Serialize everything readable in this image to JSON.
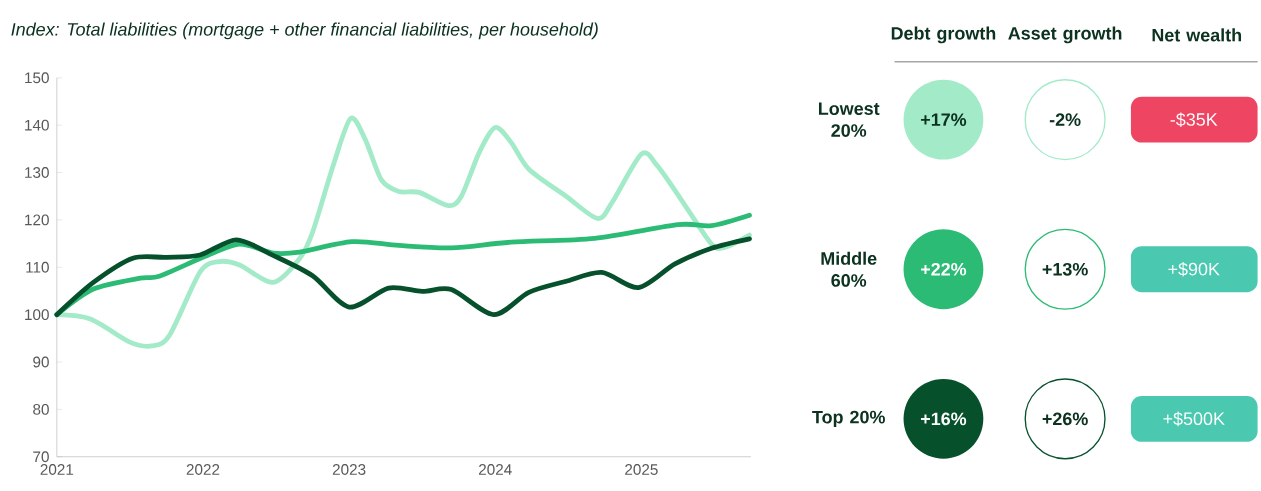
{
  "chart_data": [
    {
      "type": "line",
      "title": "Index: Total liabilities (mortgage + other financial liabilities, per household)",
      "xlim": [
        2021,
        2025.75
      ],
      "ylim": [
        70,
        150
      ],
      "xticks": [
        2021,
        2022,
        2023,
        2024,
        2025
      ],
      "yticks": [
        70,
        80,
        90,
        100,
        110,
        120,
        130,
        140,
        150
      ],
      "grid": false,
      "series": [
        {
          "color": "#a3ebc8",
          "x": [
            2021.0,
            2021.23,
            2021.5,
            2021.65,
            2021.77,
            2021.98,
            2022.11,
            2022.25,
            2022.48,
            2022.66,
            2022.75,
            2022.89,
            2023.01,
            2023.11,
            2023.22,
            2023.34,
            2023.48,
            2023.68,
            2023.77,
            2023.89,
            2024.0,
            2024.11,
            2024.23,
            2024.48,
            2024.7,
            2024.8,
            2025.0,
            2025.11,
            2025.27,
            2025.48,
            2025.57,
            2025.74
          ],
          "values": [
            100,
            99.1,
            94.2,
            93.4,
            95.6,
            109,
            111.2,
            110.5,
            106.8,
            111.8,
            117.4,
            131.4,
            141.4,
            137,
            128.5,
            126,
            125.8,
            123,
            125.1,
            134.2,
            139.5,
            136.3,
            130.7,
            125.1,
            120.3,
            123.7,
            133.9,
            131.4,
            124.4,
            114.9,
            114.2,
            116.8
          ]
        },
        {
          "color": "#2bbb75",
          "x": [
            2021.0,
            2021.25,
            2021.57,
            2021.7,
            2022.0,
            2022.25,
            2022.48,
            2022.66,
            2023.02,
            2023.34,
            2023.7,
            2024.11,
            2024.68,
            2025.25,
            2025.48,
            2025.74
          ],
          "values": [
            100,
            105.4,
            107.7,
            108.1,
            112.1,
            114.9,
            113,
            113.2,
            115.4,
            114.6,
            114.1,
            115.3,
            116.1,
            119,
            118.8,
            121
          ]
        },
        {
          "color": "#06512c",
          "x": [
            2021.0,
            2021.25,
            2021.52,
            2021.75,
            2021.98,
            2022.23,
            2022.48,
            2022.75,
            2023.0,
            2023.27,
            2023.5,
            2023.7,
            2023.99,
            2024.23,
            2024.48,
            2024.73,
            2024.98,
            2025.23,
            2025.48,
            2025.74
          ],
          "values": [
            100,
            106.8,
            111.9,
            112.1,
            112.6,
            115.8,
            112.5,
            108.2,
            101.6,
            105.6,
            104.9,
            105.3,
            100,
            104.7,
            107,
            108.9,
            105.7,
            110.7,
            114,
            116
          ]
        }
      ]
    },
    {
      "type": "other",
      "categories": [
        "Debt growth",
        "Asset growth",
        "Net wealth"
      ],
      "y_categories": [
        "Lowest 20%",
        "Middle 60%",
        "Top 20%"
      ],
      "cell_labels": [
        [
          "+17%",
          "-2%",
          "-$35K"
        ],
        [
          "+22%",
          "+13%",
          "+$90K"
        ],
        [
          "+16%",
          "+26%",
          "+$500K"
        ]
      ],
      "colors": [
        "#a3ebc8",
        "#a3ebc8",
        "#ee4563",
        "#2bbb75",
        "#2bbb75",
        "#4ac9b0",
        "#06512c",
        "#06512c",
        "#4ac9b0"
      ]
    }
  ]
}
